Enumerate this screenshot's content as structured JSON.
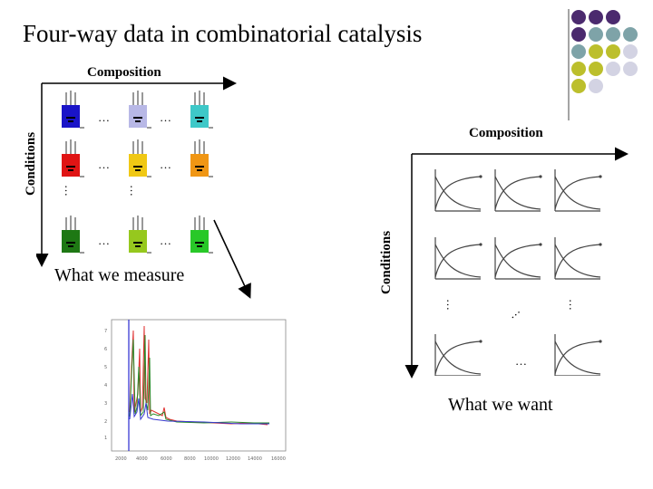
{
  "title": "Four-way data in combinatorial catalysis",
  "left_panel": {
    "composition_label": "Composition",
    "conditions_label": "Conditions",
    "caption": "What we measure",
    "ellipsis": "…",
    "vertical_ellipsis": "…",
    "reactor_colors": [
      [
        "#1a14c8",
        "#b8b8e6",
        "#3ec8c8"
      ],
      [
        "#e01414",
        "#f0c814",
        "#f09614"
      ],
      [
        "#1e7814",
        "#96c81e",
        "#28c828"
      ]
    ]
  },
  "right_panel": {
    "composition_label": "Composition",
    "conditions_label": "Conditions",
    "caption": "What we want",
    "ellipsis": "…",
    "vertical_ellipsis": "…"
  },
  "decoration": {
    "dot_colors": [
      "#4b2a6e",
      "#7ea3a8",
      "#bcbf2c",
      "#d3d3e3"
    ]
  }
}
